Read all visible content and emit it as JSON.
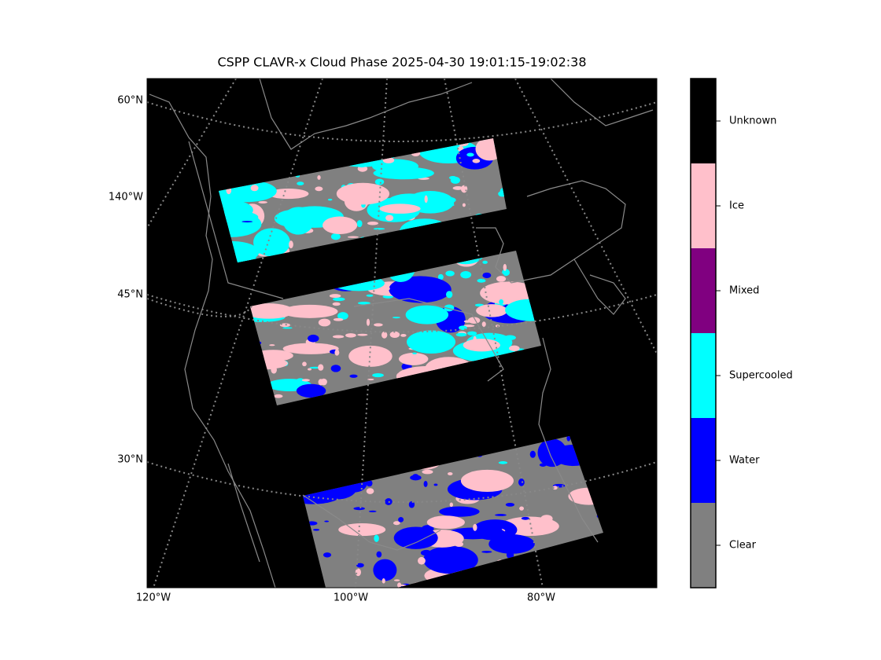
{
  "title": "CSPP CLAVR-x Cloud Phase 2025-04-30 19:01:15-19:02:38",
  "map": {
    "lat_labels": [
      "60°N",
      "45°N",
      "30°N"
    ],
    "lon_label_left": "140°W",
    "lon_labels_bottom": [
      "120°W",
      "100°W",
      "80°W"
    ]
  },
  "colorbar": {
    "classes": [
      {
        "label": "Clear",
        "color": "#808080"
      },
      {
        "label": "Water",
        "color": "#0000ff"
      },
      {
        "label": "Supercooled",
        "color": "#00ffff"
      },
      {
        "label": "Mixed",
        "color": "#800080"
      },
      {
        "label": "Ice",
        "color": "#ffc0cb"
      },
      {
        "label": "Unknown",
        "color": "#000000"
      }
    ]
  }
}
